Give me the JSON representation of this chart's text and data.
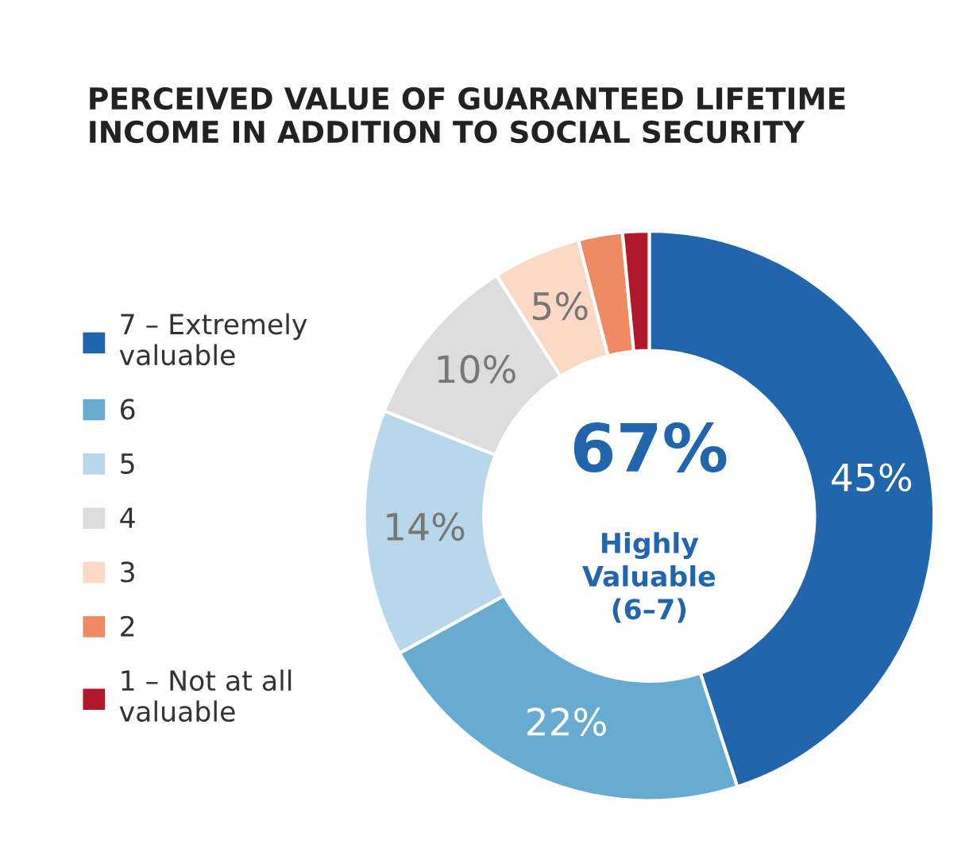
{
  "chart_data": {
    "type": "donut",
    "title": "PERCEIVED VALUE OF GUARANTEED LIFETIME\nINCOME IN ADDITION TO SOCIAL SECURITY",
    "categories": [
      "7 – Extremely\nvaluable",
      "6",
      "5",
      "4",
      "3",
      "2",
      "1 – Not at all\nvaluable"
    ],
    "values": [
      45,
      22,
      14,
      10,
      5,
      2.5,
      1.5
    ],
    "colors": [
      "#2166ac",
      "#67abd0",
      "#b8d7ea",
      "#dddddd",
      "#fcd9c6",
      "#ef8a62",
      "#b2182b"
    ],
    "value_labels": [
      "45%",
      "22%",
      "14%",
      "10%",
      "5%",
      null,
      null
    ],
    "annotations": [
      "67%",
      "Highly\nValuable\n(6–7)"
    ],
    "legend": "left"
  }
}
